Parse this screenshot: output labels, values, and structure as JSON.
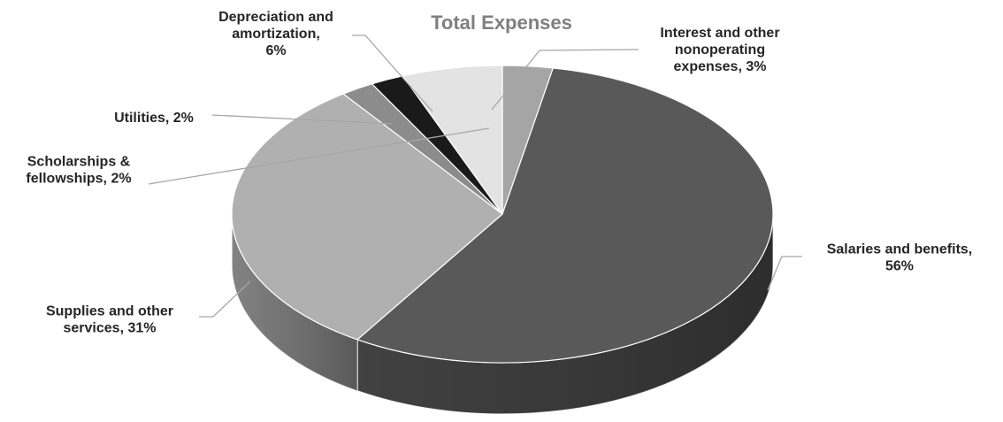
{
  "chart_data": {
    "type": "pie",
    "title": "Total Expenses",
    "slices": [
      {
        "label": "Interest and other nonoperating expenses",
        "value": 3,
        "display": "Interest and other\nnonoperating\nexpenses, 3%",
        "color": "#a5a5a5"
      },
      {
        "label": "Salaries and benefits",
        "value": 56,
        "display": "Salaries and benefits,\n56%",
        "color": "#595959"
      },
      {
        "label": "Supplies and other services",
        "value": 31,
        "display": "Supplies and other\nservices, 31%",
        "color": "#b0b0b0"
      },
      {
        "label": "Scholarships & fellowships",
        "value": 2,
        "display": "Scholarships &\nfellowships, 2%",
        "color": "#8c8c8c"
      },
      {
        "label": "Utilities",
        "value": 2,
        "display": "Utilities, 2%",
        "color": "#1a1a1a"
      },
      {
        "label": "Depreciation and amortization",
        "value": 6,
        "display": "Depreciation and\namortization,\n6%",
        "color": "#e3e3e3"
      }
    ],
    "legend": "none",
    "style": "3d"
  }
}
